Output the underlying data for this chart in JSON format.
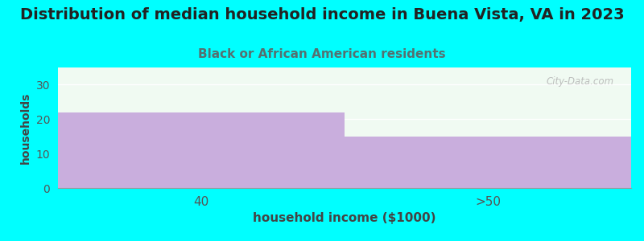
{
  "title": "Distribution of median household income in Buena Vista, VA in 2023",
  "subtitle": "Black or African American residents",
  "xlabel": "household income ($1000)",
  "ylabel": "households",
  "categories": [
    "40",
    ">50"
  ],
  "values": [
    22,
    15
  ],
  "bar_color": "#c9aedd",
  "background_color": "#00FFFF",
  "plot_bg_color": "#f0faf2",
  "ylim": [
    0,
    35
  ],
  "yticks": [
    0,
    10,
    20,
    30
  ],
  "title_fontsize": 14,
  "subtitle_fontsize": 11,
  "subtitle_color": "#557070",
  "xlabel_fontsize": 11,
  "ylabel_fontsize": 10,
  "watermark": "City-Data.com"
}
